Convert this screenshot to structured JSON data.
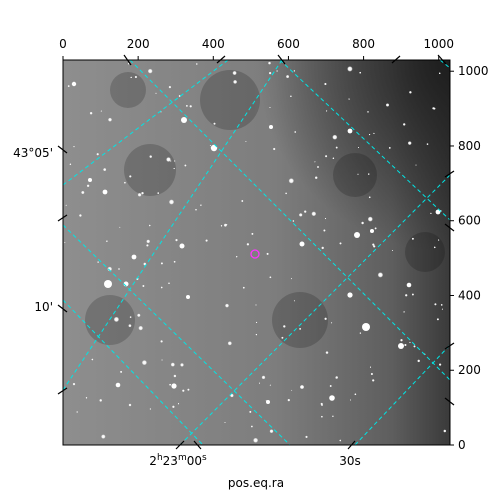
{
  "figure": {
    "xlabel": "pos.eq.ra",
    "colors": {
      "grid": "#00e5e5",
      "marker": "#ff33ff",
      "frame": "#000000"
    },
    "pixel_axis_top": {
      "range": [
        0,
        1030
      ],
      "ticks": [
        {
          "value": 0,
          "label": "0"
        },
        {
          "value": 200,
          "label": "200"
        },
        {
          "value": 400,
          "label": "400"
        },
        {
          "value": 600,
          "label": "600"
        },
        {
          "value": 800,
          "label": "800"
        },
        {
          "value": 1000,
          "label": "1000"
        }
      ]
    },
    "pixel_axis_right": {
      "range": [
        0,
        1030
      ],
      "ticks": [
        {
          "value": 0,
          "label": "0"
        },
        {
          "value": 200,
          "label": "200"
        },
        {
          "value": 400,
          "label": "400"
        },
        {
          "value": 600,
          "label": "600"
        },
        {
          "value": 800,
          "label": "800"
        },
        {
          "value": 1000,
          "label": "1000"
        }
      ]
    },
    "ra_ticks": [
      "2h23m00s",
      "30s"
    ],
    "dec_ticks": [
      "43°05'",
      "10'"
    ]
  }
}
